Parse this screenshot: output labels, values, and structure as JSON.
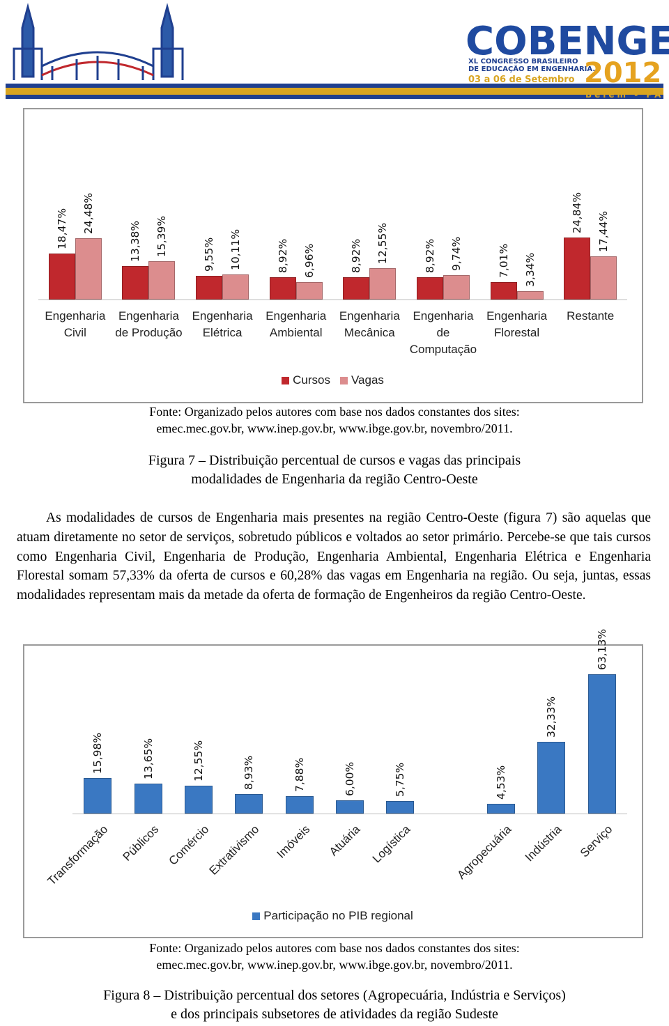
{
  "header": {
    "logo_title": "COBENGE",
    "congress": "XL CONGRESSO BRASILEIRO",
    "congress_line2": "DE EDUCAÇÃO EM ENGENHARIA.",
    "dates": "03 a 06 de Setembro",
    "year": "2012",
    "place": "Belém - PA"
  },
  "chart_data": [
    {
      "type": "bar",
      "categories": [
        "Engenharia Civil",
        "Engenharia de Produção",
        "Engenharia Elétrica",
        "Engenharia Ambiental",
        "Engenharia Mecânica",
        "Engenharia de Computação",
        "Engenharia Florestal",
        "Restante"
      ],
      "series": [
        {
          "name": "Cursos",
          "color": "#c0282d",
          "values": [
            18.47,
            13.38,
            9.55,
            8.92,
            8.92,
            8.92,
            7.01,
            24.84
          ],
          "value_labels": [
            "18,47%",
            "13,38%",
            "9,55%",
            "8,92%",
            "8,92%",
            "8,92%",
            "7,01%",
            "24,84%"
          ]
        },
        {
          "name": "Vagas",
          "color": "#dc8d8e",
          "values": [
            24.48,
            15.39,
            10.11,
            6.96,
            12.55,
            9.74,
            3.34,
            17.44
          ],
          "value_labels": [
            "24,48%",
            "15,39%",
            "10,11%",
            "6,96%",
            "12,55%",
            "9,74%",
            "3,34%",
            "17,44%"
          ]
        }
      ],
      "ylim": [
        0,
        60
      ],
      "legend": "bottom"
    },
    {
      "type": "bar",
      "categories": [
        "Transformação",
        "Públicos",
        "Comércio",
        "Extrativismo",
        "Imóveis",
        "Atuária",
        "Logística",
        null,
        "Agropecuária",
        "Indústria",
        "Serviço"
      ],
      "series": [
        {
          "name": "Participação no PIB regional",
          "color": "#3a78c2",
          "values": [
            15.98,
            13.65,
            12.55,
            8.93,
            7.88,
            6.0,
            5.75,
            null,
            4.53,
            32.33,
            63.13
          ],
          "value_labels": [
            "15,98%",
            "13,65%",
            "12,55%",
            "8,93%",
            "7,88%",
            "6,00%",
            "5,75%",
            null,
            "4,53%",
            "32,33%",
            "63,13%"
          ]
        }
      ],
      "ylim": [
        0,
        70
      ],
      "legend": "bottom"
    }
  ],
  "figure7": {
    "source": "Fonte: Organizado pelos autores com base nos dados constantes dos sites:",
    "source_line2": "emec.mec.gov.br, www.inep.gov.br, www.ibge.gov.br, novembro/2011.",
    "caption": "Figura 7 – Distribuição percentual de cursos e vagas das principais",
    "caption_line2": "modalidades de Engenharia da região Centro-Oeste"
  },
  "paragraph": "As modalidades de cursos de Engenharia mais presentes na região Centro-Oeste (figura 7) são aquelas que atuam diretamente no setor de serviços, sobretudo públicos e voltados ao setor primário. Percebe-se que tais cursos como Engenharia Civil, Engenharia de Produção, Engenharia Ambiental, Engenharia Elétrica e Engenharia Florestal somam 57,33% da oferta de cursos e 60,28% das vagas em Engenharia na região. Ou seja, juntas, essas modalidades representam mais da metade da oferta de formação de Engenheiros da região Centro-Oeste.",
  "figure8": {
    "source": "Fonte: Organizado pelos autores com base nos dados constantes dos sites:",
    "source_line2": "emec.mec.gov.br, www.inep.gov.br, www.ibge.gov.br, novembro/2011.",
    "caption": "Figura 8 – Distribuição percentual dos setores (Agropecuária, Indústria e Serviços)",
    "caption_line2": "e dos principais subsetores de atividades da região Sudeste"
  }
}
